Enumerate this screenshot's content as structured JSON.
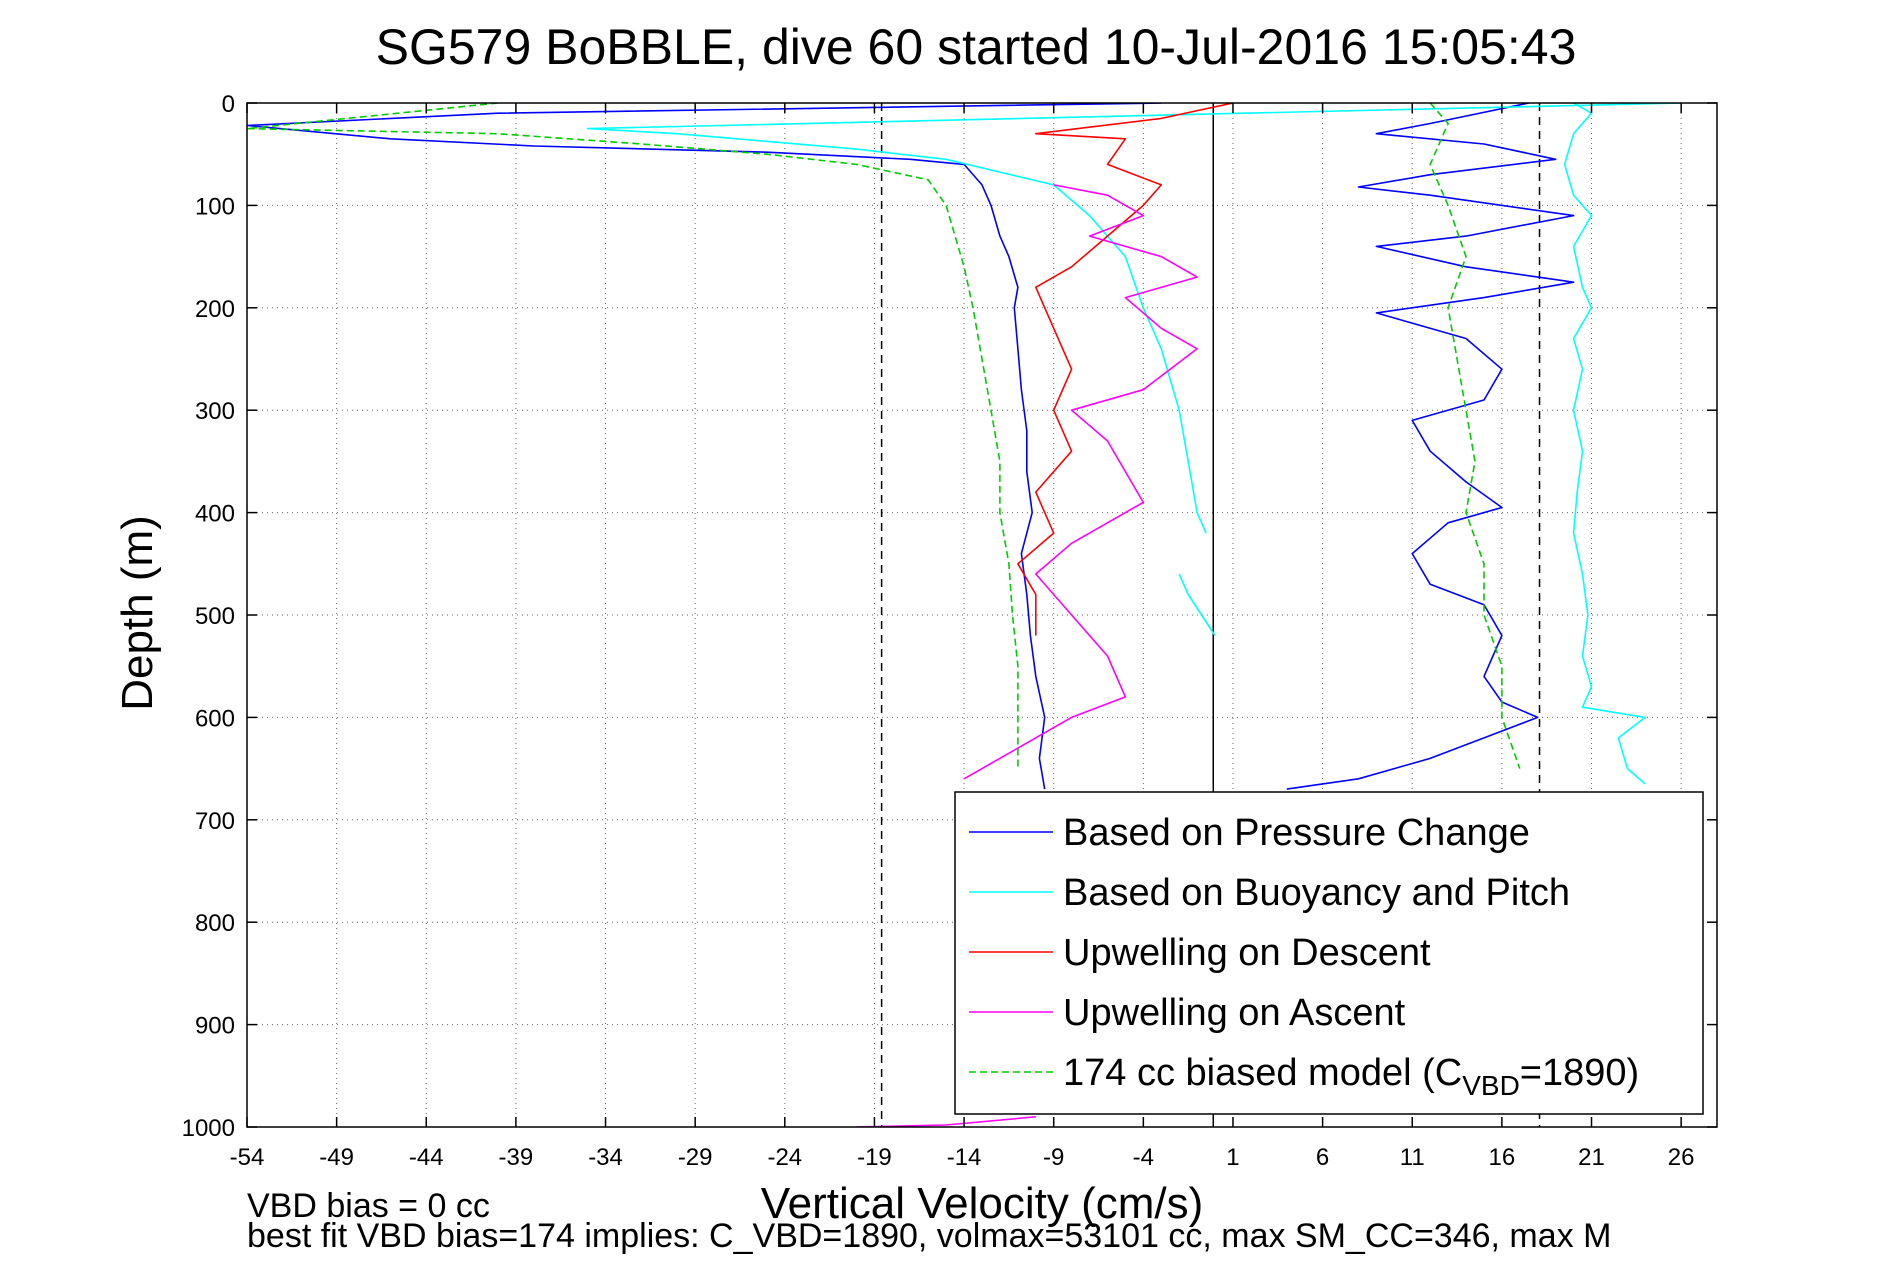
{
  "chart_data": {
    "type": "line",
    "title": "SG579 BoBBLE, dive 60 started 10-Jul-2016 15:05:43",
    "xlabel": "Vertical Velocity (cm/s)",
    "ylabel": "Depth (m)",
    "xlim": [
      -54,
      28
    ],
    "ylim": [
      0,
      1000
    ],
    "y_reversed": true,
    "grid": true,
    "x_ticks": [
      -54,
      -49,
      -44,
      -39,
      -34,
      -29,
      -24,
      -19,
      -14,
      -9,
      -4,
      1,
      6,
      11,
      16,
      21,
      26
    ],
    "y_ticks": [
      0,
      100,
      200,
      300,
      400,
      500,
      600,
      700,
      800,
      900,
      1000
    ],
    "reference_lines": {
      "dashed_x": [
        -18.6,
        18.1
      ],
      "solid_x": [
        -0.1
      ]
    },
    "legend": {
      "placement": "bottom-right",
      "entries": [
        {
          "label": "Based on Pressure Change",
          "color": "#0000ff",
          "dash": "solid"
        },
        {
          "label": "Based on Buoyancy and Pitch",
          "color": "#00ffff",
          "dash": "solid"
        },
        {
          "label": "Upwelling on Descent",
          "color": "#ff0000",
          "dash": "solid"
        },
        {
          "label": "Upwelling on Ascent",
          "color": "#ff00ff",
          "dash": "solid"
        },
        {
          "label": "174 cc biased model (C",
          "sub": "VBD",
          "suffix": "=1890)",
          "color": "#00cc00",
          "dash": "dashed"
        }
      ]
    },
    "series": [
      {
        "name": "Based on Pressure Change",
        "color": "#0000ff",
        "points": [
          [
            -3,
            0
          ],
          [
            -40,
            10
          ],
          [
            -54,
            22
          ],
          [
            -46,
            35
          ],
          [
            -38,
            42
          ],
          [
            -25,
            48
          ],
          [
            -17,
            55
          ],
          [
            -14,
            60
          ],
          [
            -13,
            80
          ],
          [
            -12.5,
            100
          ],
          [
            -12,
            130
          ],
          [
            -11.5,
            150
          ],
          [
            -11,
            180
          ],
          [
            -11.2,
            200
          ],
          [
            -11,
            240
          ],
          [
            -10.8,
            280
          ],
          [
            -10.5,
            320
          ],
          [
            -10.5,
            360
          ],
          [
            -10.2,
            400
          ],
          [
            -10.8,
            440
          ],
          [
            -10.5,
            480
          ],
          [
            -10.3,
            520
          ],
          [
            -10,
            560
          ],
          [
            -9.5,
            600
          ],
          [
            -9.8,
            640
          ],
          [
            -9.5,
            670
          ]
        ]
      },
      {
        "name": "Based on Pressure Change",
        "color": "#0000ff",
        "points": [
          [
            17.5,
            0
          ],
          [
            12,
            20
          ],
          [
            9,
            30
          ],
          [
            15,
            40
          ],
          [
            19,
            55
          ],
          [
            12,
            70
          ],
          [
            8,
            82
          ],
          [
            12,
            90
          ],
          [
            20,
            110
          ],
          [
            14,
            130
          ],
          [
            9,
            140
          ],
          [
            14,
            160
          ],
          [
            20,
            175
          ],
          [
            15,
            190
          ],
          [
            9,
            205
          ],
          [
            14,
            230
          ],
          [
            16,
            260
          ],
          [
            15,
            290
          ],
          [
            11,
            310
          ],
          [
            12,
            340
          ],
          [
            14,
            370
          ],
          [
            16,
            395
          ],
          [
            13,
            410
          ],
          [
            11,
            440
          ],
          [
            12,
            470
          ],
          [
            15,
            490
          ],
          [
            16,
            520
          ],
          [
            15,
            560
          ],
          [
            16,
            585
          ],
          [
            18,
            600
          ],
          [
            15,
            620
          ],
          [
            12,
            640
          ],
          [
            8,
            660
          ],
          [
            4,
            670
          ]
        ]
      },
      {
        "name": "Based on Buoyancy and Pitch",
        "color": "#00ffff",
        "points": [
          [
            26,
            0
          ],
          [
            -35,
            25
          ],
          [
            -30,
            30
          ],
          [
            -20,
            45
          ],
          [
            -15,
            55
          ],
          [
            -9,
            80
          ],
          [
            -7,
            110
          ],
          [
            -5,
            150
          ],
          [
            -4,
            200
          ],
          [
            -3,
            240
          ],
          [
            -2,
            300
          ],
          [
            -1.5,
            350
          ],
          [
            -1,
            400
          ],
          [
            -0.5,
            420
          ]
        ]
      },
      {
        "name": "Based on Buoyancy and Pitch",
        "color": "#00ffff",
        "points": [
          [
            -2,
            460
          ],
          [
            -1.5,
            480
          ],
          [
            0,
            520
          ]
        ]
      },
      {
        "name": "Based on Buoyancy and Pitch",
        "color": "#00ffff",
        "points": [
          [
            20,
            0
          ],
          [
            21,
            10
          ],
          [
            20,
            30
          ],
          [
            19.5,
            60
          ],
          [
            20,
            90
          ],
          [
            21,
            110
          ],
          [
            20,
            140
          ],
          [
            20.5,
            180
          ],
          [
            21,
            200
          ],
          [
            20,
            230
          ],
          [
            20.5,
            260
          ],
          [
            20,
            300
          ],
          [
            20.5,
            340
          ],
          [
            20.2,
            380
          ],
          [
            20,
            420
          ],
          [
            20.5,
            460
          ],
          [
            20.8,
            500
          ],
          [
            20.5,
            540
          ],
          [
            21,
            570
          ],
          [
            20.5,
            590
          ],
          [
            24,
            600
          ],
          [
            22.5,
            620
          ],
          [
            23,
            650
          ],
          [
            24,
            665
          ]
        ]
      },
      {
        "name": "Upwelling on Descent",
        "color": "#ff0000",
        "points": [
          [
            1,
            0
          ],
          [
            -3,
            15
          ],
          [
            -10,
            30
          ],
          [
            -5,
            35
          ],
          [
            -6,
            60
          ],
          [
            -3,
            80
          ],
          [
            -4,
            100
          ],
          [
            -6,
            130
          ],
          [
            -8,
            160
          ],
          [
            -10,
            180
          ],
          [
            -9,
            220
          ],
          [
            -8,
            260
          ],
          [
            -9,
            300
          ],
          [
            -8,
            340
          ],
          [
            -10,
            380
          ],
          [
            -9,
            420
          ],
          [
            -11,
            450
          ],
          [
            -10,
            480
          ],
          [
            -10,
            520
          ]
        ]
      },
      {
        "name": "Upwelling on Ascent",
        "color": "#ff00ff",
        "points": [
          [
            -9,
            80
          ],
          [
            -6,
            90
          ],
          [
            -4,
            110
          ],
          [
            -7,
            130
          ],
          [
            -3,
            150
          ],
          [
            -1,
            170
          ],
          [
            -5,
            190
          ],
          [
            -3,
            220
          ],
          [
            -1,
            240
          ],
          [
            -4,
            280
          ],
          [
            -8,
            300
          ],
          [
            -6,
            330
          ],
          [
            -5,
            360
          ],
          [
            -4,
            390
          ],
          [
            -6,
            410
          ],
          [
            -8,
            430
          ],
          [
            -10,
            460
          ],
          [
            -8,
            500
          ],
          [
            -6,
            540
          ],
          [
            -5,
            580
          ],
          [
            -8,
            600
          ],
          [
            -11,
            630
          ],
          [
            -14,
            660
          ]
        ]
      },
      {
        "name": "Upwelling on Ascent",
        "color": "#ff00ff",
        "points": [
          [
            -20,
            1000
          ],
          [
            -15,
            998
          ],
          [
            -10,
            990
          ]
        ]
      },
      {
        "name": "174 cc biased model (C_VBD=1890)",
        "color": "#00cc00",
        "dashed": true,
        "points": [
          [
            -40,
            0
          ],
          [
            -54,
            25
          ],
          [
            -40,
            30
          ],
          [
            -32,
            40
          ],
          [
            -25,
            50
          ],
          [
            -20,
            60
          ],
          [
            -16,
            75
          ],
          [
            -15,
            100
          ],
          [
            -14.5,
            130
          ],
          [
            -14,
            160
          ],
          [
            -13.5,
            200
          ],
          [
            -13,
            250
          ],
          [
            -12.5,
            300
          ],
          [
            -12,
            350
          ],
          [
            -12,
            400
          ],
          [
            -11.5,
            450
          ],
          [
            -11.3,
            500
          ],
          [
            -11,
            550
          ],
          [
            -11,
            600
          ],
          [
            -11,
            650
          ]
        ]
      },
      {
        "name": "174 cc biased model (C_VBD=1890)",
        "color": "#00cc00",
        "dashed": true,
        "points": [
          [
            12,
            0
          ],
          [
            13,
            20
          ],
          [
            12,
            60
          ],
          [
            13,
            100
          ],
          [
            14,
            150
          ],
          [
            13,
            200
          ],
          [
            13.5,
            250
          ],
          [
            14,
            300
          ],
          [
            14.5,
            350
          ],
          [
            14,
            400
          ],
          [
            15,
            450
          ],
          [
            15,
            500
          ],
          [
            16,
            550
          ],
          [
            16,
            600
          ],
          [
            17,
            650
          ]
        ]
      }
    ]
  },
  "footer": {
    "vbd_bias_line": "VBD bias = 0 cc",
    "best_fit_line": "best fit VBD bias=174 implies: C_VBD=1890, volmax=53101 cc, max SM_CC=346, max M"
  }
}
